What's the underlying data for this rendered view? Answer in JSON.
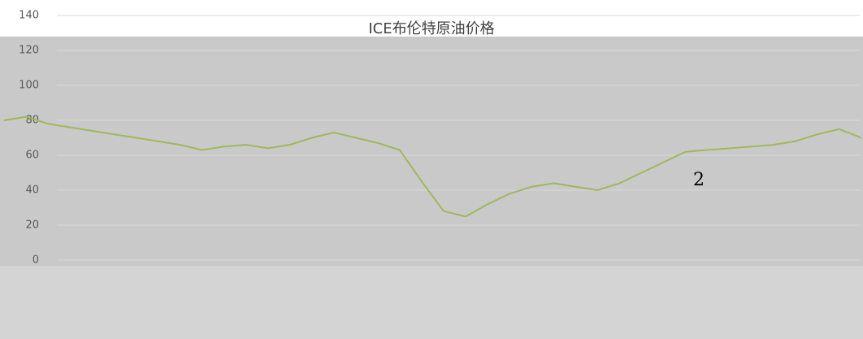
{
  "chart_data": {
    "type": "line",
    "title": "ICE布伦特原油价格",
    "annotation": "2",
    "categories": [
      null,
      null,
      null,
      null,
      null,
      null,
      null,
      null,
      null,
      null,
      null,
      null,
      null,
      null,
      null,
      null,
      null,
      null,
      null,
      null,
      null,
      null,
      null,
      null,
      null,
      null,
      null,
      null,
      null,
      null,
      null,
      null,
      null,
      null,
      null,
      null,
      null,
      null,
      null,
      null
    ],
    "series": [
      {
        "name": "ICE布伦特原油价格",
        "color": "#9fb85c",
        "values": [
          80,
          82,
          78,
          76,
          74,
          72,
          70,
          68,
          66,
          63,
          65,
          66,
          64,
          66,
          70,
          73,
          70,
          67,
          63,
          45,
          28,
          25,
          32,
          38,
          42,
          44,
          42,
          40,
          44,
          50,
          56,
          62,
          63,
          64,
          65,
          66,
          68,
          72,
          75,
          70
        ]
      }
    ],
    "ylim": [
      0,
      140
    ],
    "yticks": [
      0,
      20,
      40,
      60,
      80,
      100,
      120,
      140
    ],
    "grid": true
  }
}
